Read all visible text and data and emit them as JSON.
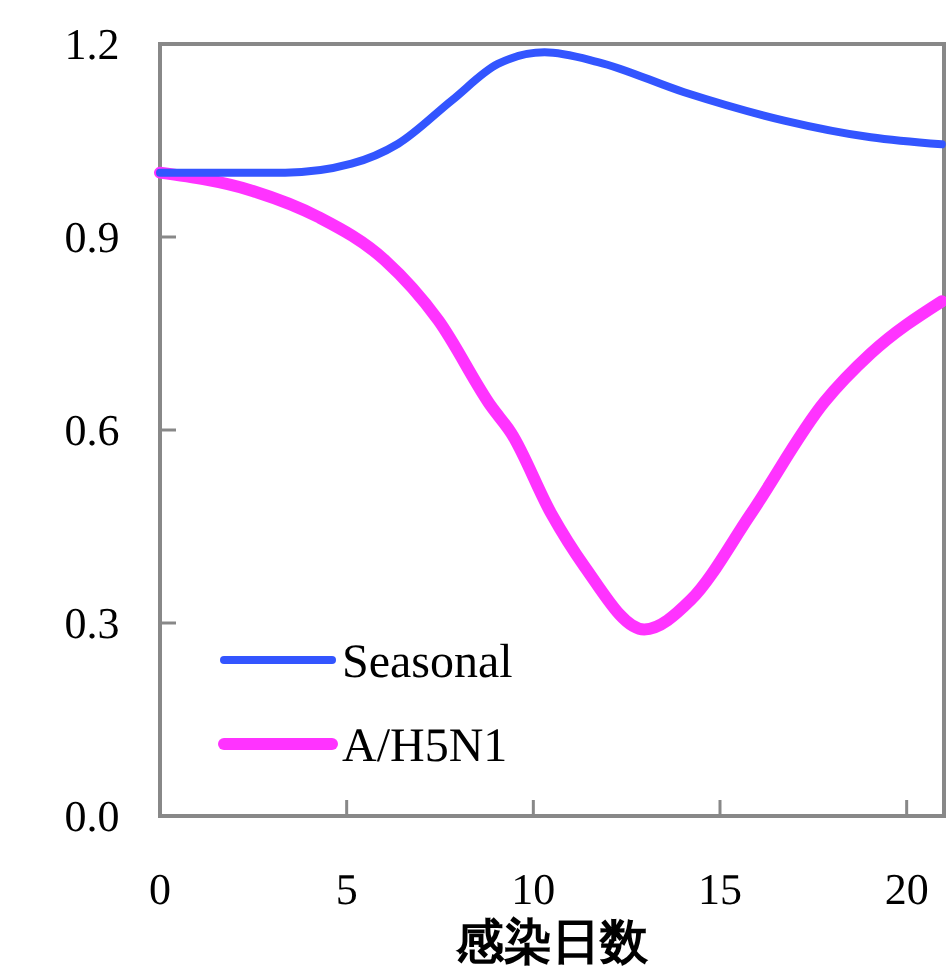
{
  "chart_data": {
    "type": "line",
    "xlabel": "感染日数",
    "xlim": [
      0,
      21
    ],
    "xticks": [
      0,
      5,
      10,
      15,
      20
    ],
    "ylim": [
      0,
      1.2
    ],
    "yticks": [
      {
        "value": 0,
        "label": "0.0"
      },
      0.3,
      0.6,
      0.9,
      {
        "value": 1.2,
        "label": "1.2"
      }
    ],
    "legend": "bottom left",
    "grid": false,
    "marker": "none",
    "line_style": "solid",
    "series": [
      {
        "name": "Seasonal",
        "color": "#3355ff",
        "x": [
          0,
          3.35,
          5.13,
          6.38,
          7.81,
          9.05,
          10.3,
          11.73,
          14.04,
          16.72,
          19.04,
          20.94
        ],
        "values": [
          1.0,
          1.0,
          1.014,
          1.045,
          1.112,
          1.169,
          1.187,
          1.172,
          1.125,
          1.081,
          1.055,
          1.044
        ]
      },
      {
        "name": "A/H5N1",
        "color": "#ff33ff",
        "x": [
          0,
          2.46,
          4.24,
          6.02,
          7.45,
          8.88,
          9.41,
          10.48,
          11.37,
          12.97,
          14.22,
          15.83,
          17.79,
          19.04,
          20.94
        ],
        "values": [
          1.0,
          0.972,
          0.931,
          0.864,
          0.771,
          0.636,
          0.595,
          0.47,
          0.388,
          0.29,
          0.336,
          0.47,
          0.643,
          0.719,
          0.8
        ]
      }
    ]
  }
}
